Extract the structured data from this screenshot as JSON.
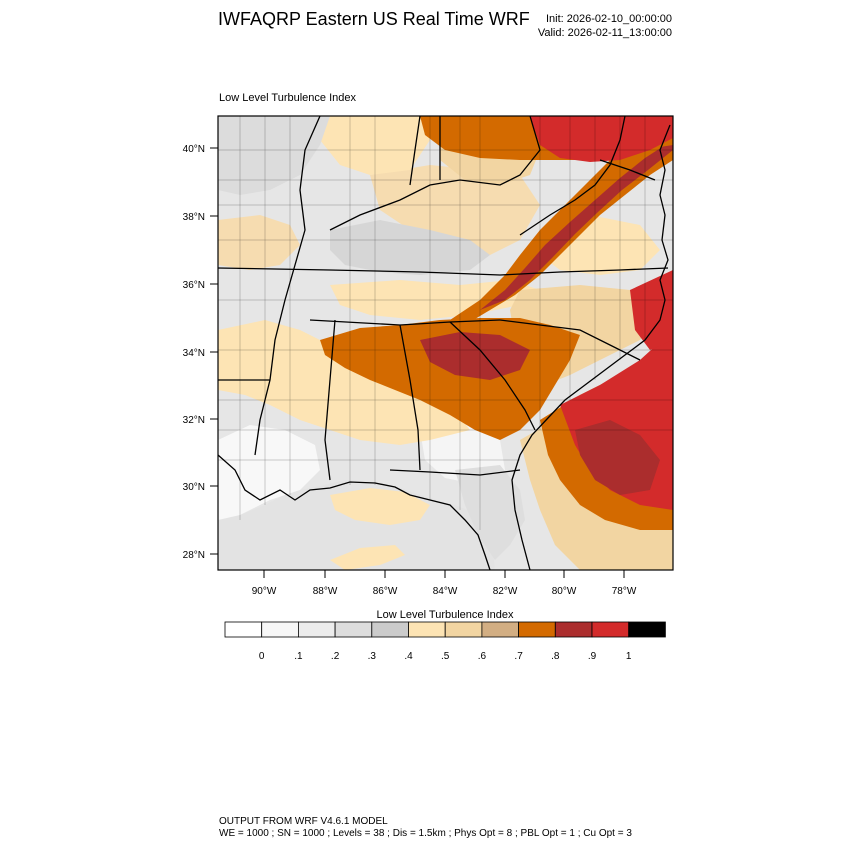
{
  "header": {
    "title": "IWFAQRP Eastern US Real Time WRF",
    "init": "Init: 2026-02-10_00:00:00",
    "valid": "Valid: 2026-02-11_13:00:00"
  },
  "panel": {
    "title": "Low Level Turbulence Index"
  },
  "axes": {
    "lat_labels": [
      "40°N",
      "38°N",
      "36°N",
      "34°N",
      "32°N",
      "30°N",
      "28°N"
    ],
    "lon_labels": [
      "90°W",
      "88°W",
      "86°W",
      "84°W",
      "82°W",
      "80°W",
      "78°W"
    ],
    "lat_range": [
      27.5,
      41.0
    ],
    "lon_range": [
      -91.5,
      -76.5
    ]
  },
  "colorbar": {
    "title": "Low Level Turbulence Index",
    "labels": [
      "0",
      ".1",
      ".2",
      ".3",
      ".4",
      ".5",
      ".6",
      ".7",
      ".8",
      ".9",
      "1"
    ],
    "colors": [
      "#ffffff",
      "#f7f7f7",
      "#ececec",
      "#dddddd",
      "#cbcbcb",
      "#fde4b4",
      "#f2d5a2",
      "#d2ae83",
      "#d36a00",
      "#ab2d2d",
      "#d32b2b",
      "#000000"
    ]
  },
  "footer": {
    "line1": "OUTPUT FROM WRF V4.6.1 MODEL",
    "line2": "WE = 1000 ; SN = 1000 ; Levels = 38 ; Dis = 1.5km ; Phys Opt = 8 ; PBL Opt = 1 ; Cu Opt = 3"
  }
}
